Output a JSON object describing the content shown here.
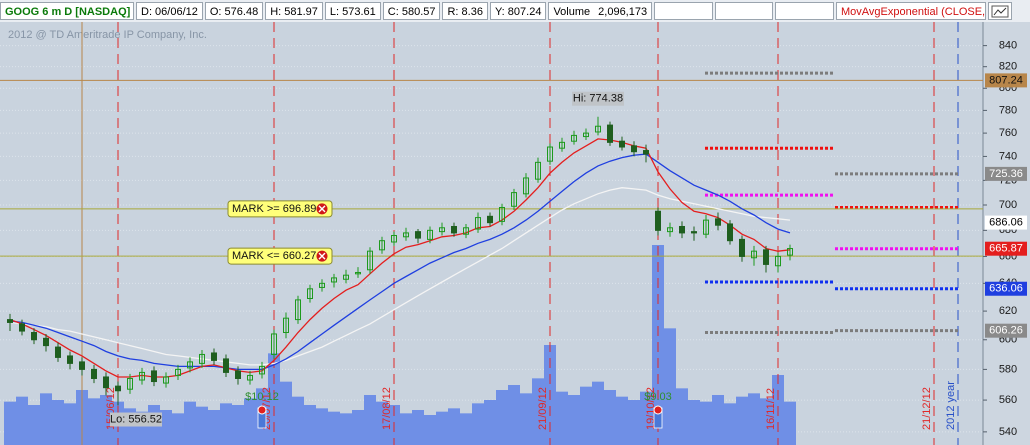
{
  "header": {
    "symbol": "GOOG 6 m D [NASDAQ]",
    "fields": [
      "D: 06/06/12",
      "O: 576.48",
      "H: 581.97",
      "L: 573.61",
      "C: 580.57",
      "R: 8.36",
      "Y: 807.24"
    ],
    "volume_label": "Volume",
    "volume": "2,096,173",
    "study": "MovAvgExponential (CLOSE, .."
  },
  "chart_data": {
    "type": "candlestick",
    "copyright": "2012 @ TD Ameritrade IP Company, Inc.",
    "categories": [
      null,
      null,
      null,
      null,
      null,
      null,
      null,
      null,
      null,
      "15/06/12",
      null,
      null,
      null,
      null,
      null,
      null,
      null,
      null,
      null,
      null,
      null,
      null,
      "20/07/12",
      null,
      null,
      null,
      null,
      null,
      null,
      null,
      null,
      null,
      "17/08/12",
      null,
      null,
      null,
      null,
      null,
      null,
      null,
      null,
      null,
      null,
      null,
      null,
      "21/09/12",
      null,
      null,
      null,
      null,
      null,
      null,
      null,
      null,
      "19/10/12",
      null,
      null,
      null,
      null,
      null,
      null,
      null,
      null,
      null,
      "16/11/12",
      null,
      null,
      null,
      null,
      null,
      null,
      null,
      null,
      null,
      null,
      null,
      null,
      "21/12/12",
      null
    ],
    "divider_color": "#e02828",
    "year_divider": {
      "label": "2012 year",
      "color": "#2850c8"
    },
    "open": [
      614,
      611,
      605,
      601,
      595,
      589,
      585,
      580,
      575,
      569,
      567,
      573,
      579,
      571,
      576,
      581,
      584,
      591,
      587,
      579,
      573,
      577,
      590,
      605,
      614,
      629,
      637,
      641,
      643,
      647,
      650,
      665,
      671,
      675,
      679,
      673,
      679,
      683,
      677,
      681,
      691,
      687,
      699,
      709,
      721,
      736,
      747,
      753,
      757,
      761,
      767,
      753,
      749,
      745,
      695,
      679,
      683,
      679,
      677,
      689,
      685,
      673,
      659,
      665,
      653,
      661,
      null,
      null,
      null,
      null,
      null,
      null,
      null,
      null,
      null,
      null,
      null,
      null,
      null
    ],
    "high": [
      618,
      614,
      608,
      604,
      598,
      592,
      588,
      583,
      578,
      572,
      577,
      581,
      582,
      578,
      583,
      588,
      593,
      594,
      590,
      582,
      579,
      585,
      607,
      619,
      631,
      639,
      643,
      647,
      650,
      652,
      667,
      675,
      679,
      682,
      681,
      683,
      686,
      686,
      685,
      694,
      694,
      701,
      713,
      726,
      739,
      751,
      756,
      762,
      764,
      774.38,
      770,
      757,
      753,
      750,
      698,
      686,
      687,
      683,
      692,
      694,
      688,
      676,
      668,
      668,
      663,
      669,
      null,
      null,
      null,
      null,
      null,
      null,
      null,
      null,
      null,
      null,
      null,
      null,
      null
    ],
    "low": [
      606,
      603,
      597,
      592,
      585,
      580,
      576,
      571,
      563,
      556.52,
      564,
      570,
      569,
      568,
      573,
      578,
      581,
      583,
      575,
      570,
      570,
      574,
      587,
      601,
      611,
      626,
      634,
      637,
      640,
      644,
      647,
      662,
      668,
      672,
      670,
      670,
      676,
      675,
      674,
      678,
      683,
      684,
      696,
      706,
      718,
      733,
      744,
      750,
      754,
      758,
      749,
      745,
      740,
      735,
      676,
      675,
      674,
      672,
      674,
      680,
      669,
      656,
      653,
      648,
      648,
      657,
      null,
      null,
      null,
      null,
      null,
      null,
      null,
      null,
      null,
      null,
      null,
      null,
      null
    ],
    "close": [
      612,
      606,
      600,
      596,
      588,
      584,
      580,
      574,
      568,
      566,
      574,
      578,
      572,
      575,
      580,
      585,
      590,
      586,
      578,
      574,
      576,
      582,
      604,
      615,
      628,
      636,
      640,
      644,
      646,
      648,
      664,
      672,
      676,
      678,
      674,
      680,
      682,
      678,
      682,
      690,
      686,
      698,
      710,
      722,
      735,
      748,
      752,
      758,
      760,
      766,
      752,
      748,
      744,
      742,
      680,
      682,
      678,
      678,
      688,
      684,
      672,
      660,
      664,
      654,
      660,
      666,
      null,
      null,
      null,
      null,
      null,
      null,
      null,
      null,
      null,
      null,
      null,
      null,
      null
    ],
    "up_color": "#1d9a1d",
    "down_color": "#1f5f1f",
    "volume": {
      "color": "#6f8fe6",
      "values": [
        2600000,
        2900000,
        2400000,
        3100000,
        2700000,
        2500000,
        3300000,
        2800000,
        3000000,
        2600000,
        2200000,
        2000000,
        2400000,
        2100000,
        1900000,
        2600000,
        2300000,
        2100000,
        2500000,
        2400000,
        2800000,
        3400000,
        5500000,
        3800000,
        2900000,
        2400000,
        2200000,
        2000000,
        1900000,
        2100000,
        3000000,
        2600000,
        2400000,
        1900000,
        2100000,
        1800000,
        2000000,
        2200000,
        1900000,
        2500000,
        2700000,
        3300000,
        3600000,
        3100000,
        4000000,
        6000000,
        3200000,
        3000000,
        3500000,
        3800000,
        3300000,
        2900000,
        2700000,
        3200000,
        12000000,
        7000000,
        3400000,
        2700000,
        2600000,
        3000000,
        2500000,
        2900000,
        3100000,
        2800000,
        4200000,
        2600000,
        null,
        null,
        null,
        null,
        null,
        null,
        null,
        null,
        null,
        null,
        null,
        null,
        null
      ]
    },
    "lines": [
      {
        "color": "#f4f4f4",
        "values": [
          612,
          611,
          610,
          609,
          607,
          606,
          604,
          602,
          600,
          598,
          596,
          594,
          592,
          590,
          589,
          588,
          587,
          586,
          585,
          584,
          583,
          583,
          584,
          586,
          589,
          592,
          595,
          599,
          603,
          607,
          611,
          616,
          621,
          626,
          631,
          636,
          641,
          646,
          651,
          656,
          661,
          666,
          672,
          678,
          684,
          690,
          696,
          701,
          705,
          709,
          712,
          714,
          713,
          712,
          708,
          705,
          703,
          701,
          699,
          697,
          695,
          693,
          691,
          690,
          689,
          688,
          null,
          null,
          null,
          null,
          null,
          null,
          null,
          null,
          null,
          null,
          null,
          null,
          null
        ]
      },
      {
        "color": "#1f3fe0",
        "values": [
          613,
          612,
          610,
          608,
          605,
          602,
          599,
          596,
          592,
          589,
          587,
          586,
          584,
          583,
          582,
          582,
          582,
          582,
          581,
          580,
          580,
          580,
          583,
          587,
          592,
          598,
          604,
          610,
          616,
          622,
          628,
          634,
          640,
          645,
          650,
          655,
          659,
          663,
          666,
          670,
          673,
          677,
          682,
          688,
          695,
          703,
          711,
          719,
          726,
          732,
          736,
          739,
          741,
          742,
          735,
          728,
          722,
          716,
          712,
          708,
          703,
          697,
          692,
          686,
          681,
          678,
          null,
          null,
          null,
          null,
          null,
          null,
          null,
          null,
          null,
          null,
          null,
          null,
          null
        ]
      },
      {
        "color": "#e41e1e",
        "values": [
          614,
          611,
          607,
          603,
          598,
          593,
          589,
          584,
          579,
          575,
          575,
          576,
          575,
          575,
          576,
          579,
          582,
          583,
          581,
          579,
          578,
          579,
          586,
          595,
          605,
          614,
          622,
          629,
          635,
          639,
          647,
          655,
          662,
          667,
          669,
          672,
          675,
          676,
          678,
          682,
          683,
          688,
          695,
          704,
          714,
          726,
          735,
          743,
          749,
          755,
          754,
          752,
          749,
          747,
          727,
          713,
          702,
          695,
          693,
          690,
          684,
          677,
          673,
          666,
          664,
          665,
          null,
          null,
          null,
          null,
          null,
          null,
          null,
          null,
          null,
          null,
          null,
          null,
          null
        ]
      }
    ],
    "earnings_labels": [
      null,
      null,
      null,
      null,
      null,
      null,
      null,
      null,
      null,
      null,
      null,
      null,
      null,
      null,
      null,
      null,
      null,
      null,
      null,
      null,
      null,
      "$10.12",
      null,
      null,
      null,
      null,
      null,
      null,
      null,
      null,
      null,
      null,
      null,
      null,
      null,
      null,
      null,
      null,
      null,
      null,
      null,
      null,
      null,
      null,
      null,
      null,
      null,
      null,
      null,
      null,
      null,
      null,
      null,
      null,
      "$9.03",
      null,
      null,
      null,
      null,
      null,
      null,
      null,
      null,
      null,
      null,
      null,
      null,
      null,
      null,
      null,
      null,
      null,
      null,
      null,
      null,
      null,
      null,
      null,
      null
    ],
    "hi_label": "Hi: 774.38",
    "lo_label": "Lo: 556.52",
    "marks": [
      {
        "value": 696.89,
        "label": "MARK >= 696.89"
      },
      {
        "value": 660.27,
        "label": "MARK <= 660.27"
      }
    ],
    "mark_color": "#a9a83a",
    "levels": {
      "colors": [
        "#7c7c7c",
        "#f01010",
        "#f010f0",
        "#1030f0",
        "#7c7c7c"
      ],
      "first": [
        814,
        747,
        708,
        641,
        605
      ],
      "second": [
        725.36,
        698,
        665.87,
        636.06,
        606.26
      ]
    },
    "price_labels": [
      {
        "value": 725.36,
        "color": "#8a8a8a",
        "text_color": "#ffffff"
      },
      {
        "value": 686.06,
        "color": "#ffffff",
        "text_color": "#000000"
      },
      {
        "value": 665.87,
        "color": "#e41e1e",
        "text_color": "#ffffff"
      },
      {
        "value": 636.06,
        "color": "#1f3fe0",
        "text_color": "#ffffff"
      },
      {
        "value": 606.26,
        "color": "#8a8a8a",
        "text_color": "#ffffff"
      }
    ],
    "crosshair": {
      "bar": 6,
      "value": 807.24,
      "color": "#b8864a"
    },
    "ylim": [
      535,
      863
    ],
    "log_scale": true,
    "grid": true,
    "yticks": [
      540,
      560,
      580,
      600,
      620,
      640,
      660,
      680,
      700,
      720,
      740,
      760,
      780,
      800,
      820,
      840
    ]
  }
}
